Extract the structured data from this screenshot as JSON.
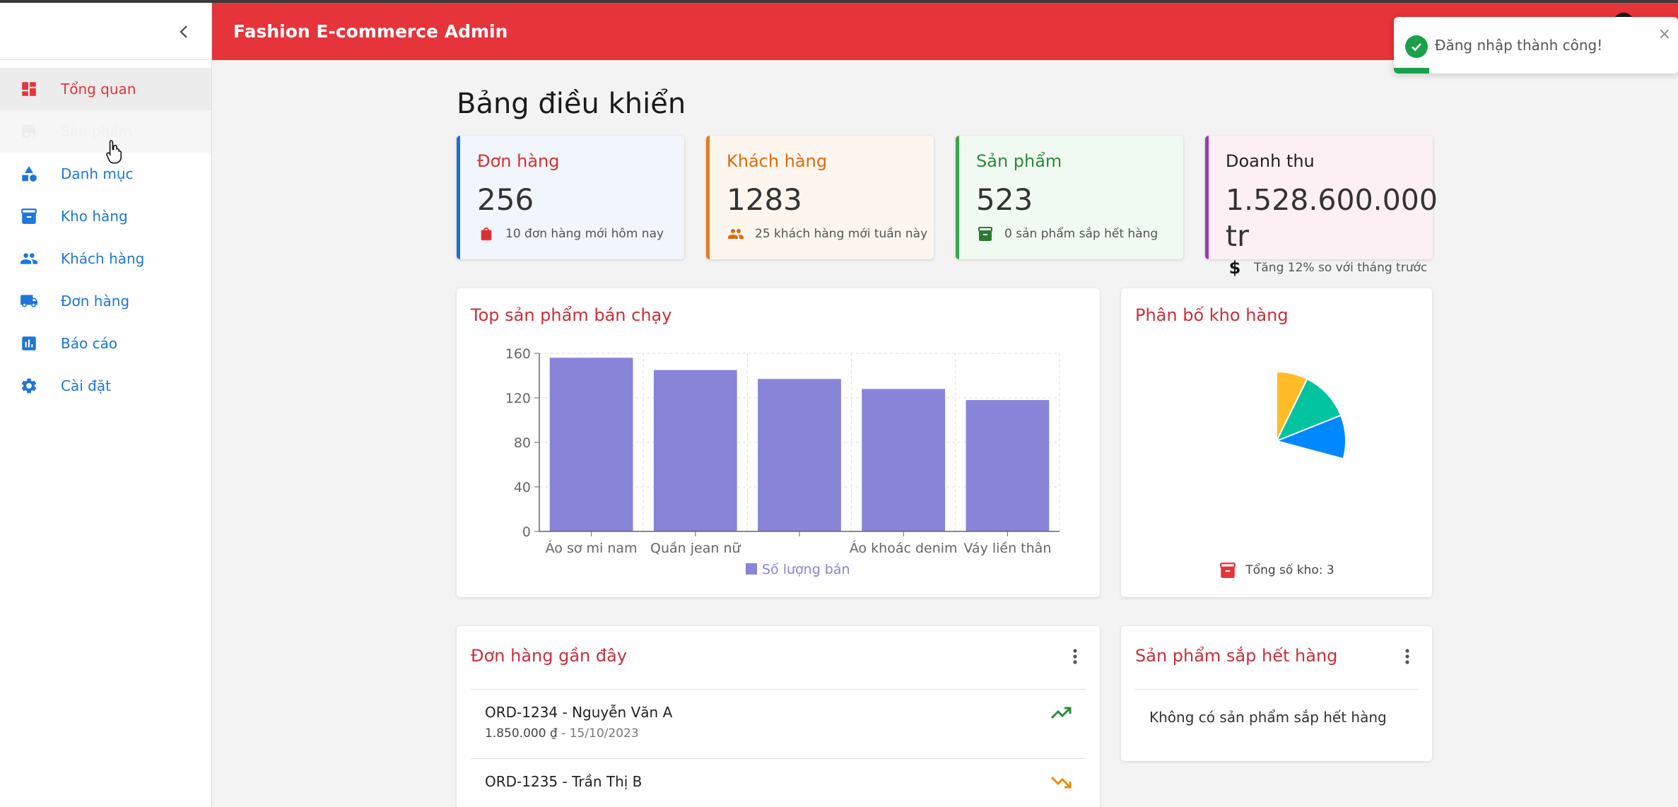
{
  "app": {
    "title": "Fashion E-commerce Admin"
  },
  "sidebar": {
    "items": [
      {
        "label": "Tổng quan",
        "icon": "dashboard-icon"
      },
      {
        "label": "Sản phẩm",
        "icon": "store-icon"
      },
      {
        "label": "Danh mục",
        "icon": "category-icon"
      },
      {
        "label": "Kho hàng",
        "icon": "inventory-icon"
      },
      {
        "label": "Khách hàng",
        "icon": "people-icon"
      },
      {
        "label": "Đơn hàng",
        "icon": "truck-icon"
      },
      {
        "label": "Báo cáo",
        "icon": "bar-chart-icon"
      },
      {
        "label": "Cài đặt",
        "icon": "gear-icon"
      }
    ]
  },
  "toast": {
    "message": "Đăng nhập thành công!",
    "close": "×"
  },
  "page": {
    "title": "Bảng điều khiển"
  },
  "stats": {
    "orders": {
      "title": "Đơn hàng",
      "value": "256",
      "sub": "10 đơn hàng mới hôm nay"
    },
    "customers": {
      "title": "Khách hàng",
      "value": "1283",
      "sub": "25 khách hàng mới tuần này"
    },
    "products": {
      "title": "Sản phẩm",
      "value": "523",
      "sub": "0 sản phẩm sắp hết hàng"
    },
    "revenue": {
      "title": "Doanh thu",
      "value": "1.528.600.000 tr",
      "sub": "Tăng 12% so với tháng trước"
    }
  },
  "colors": {
    "primary": "#e5343a",
    "nav": "#1e76d8",
    "bar": "#8884d8",
    "pie": [
      "#0088fe",
      "#00c49f",
      "#ffbb28"
    ]
  },
  "top_products": {
    "title": "Top sản phẩm bán chạy"
  },
  "warehouse": {
    "title": "Phân bố kho hàng",
    "footer": "Tổng số kho: 3"
  },
  "recent_orders": {
    "title": "Đơn hàng gần đây",
    "rows": [
      {
        "title": "ORD-1234 - Nguyễn Văn A",
        "amount": "1.850.000 ₫",
        "date": " - 15/10/2023",
        "trend": "up"
      },
      {
        "title": "ORD-1235 - Trần Thị B",
        "amount": "",
        "date": "",
        "trend": "down"
      }
    ]
  },
  "low_stock": {
    "title": "Sản phẩm sắp hết hàng",
    "empty": "Không có sản phẩm sắp hết hàng"
  },
  "chart_data": [
    {
      "type": "bar",
      "title": "Top sản phẩm bán chạy",
      "categories": [
        "Áo sơ mi nam",
        "Quần jean nữ",
        "",
        "Áo khoác denim",
        "Váy liền thân"
      ],
      "series": [
        {
          "name": "Số lượng bán",
          "values": [
            156,
            145,
            137,
            128,
            118
          ]
        }
      ],
      "ylim": [
        0,
        160
      ],
      "yticks": [
        "0",
        "40",
        "80",
        "120",
        "160"
      ],
      "grid": true,
      "legend": "bottom"
    },
    {
      "type": "pie",
      "title": "Phân bố kho hàng",
      "values": [
        35,
        40,
        25
      ],
      "start_angle_deg": 90,
      "end_angle_deg": -15,
      "legend": "none"
    }
  ]
}
